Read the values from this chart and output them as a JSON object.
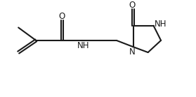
{
  "bg_color": "#ffffff",
  "line_color": "#1a1a1a",
  "line_width": 1.5,
  "font_size": 7.5,
  "figsize": [
    2.79,
    1.39
  ],
  "dpi": 100,
  "xlim": [
    0,
    10
  ],
  "ylim": [
    0,
    5
  ]
}
